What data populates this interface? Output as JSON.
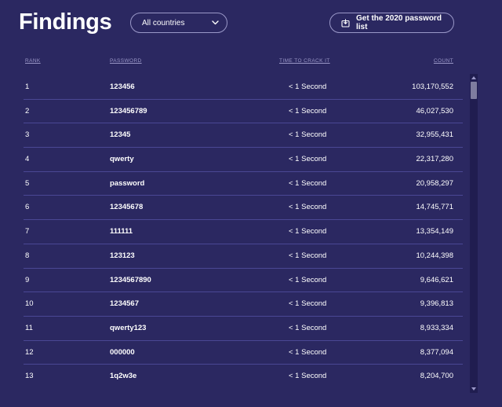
{
  "header": {
    "title": "Findings",
    "country_select": {
      "value": "All countries",
      "icon": "chevron-down-icon"
    },
    "download_button": {
      "label": "Get the 2020 password list",
      "icon": "download-icon"
    }
  },
  "table": {
    "columns": {
      "rank": "Rank",
      "password": "Password",
      "time": "Time to crack it",
      "count": "Count"
    },
    "rows": [
      {
        "rank": "1",
        "password": "123456",
        "time": "< 1 Second",
        "count": "103,170,552"
      },
      {
        "rank": "2",
        "password": "123456789",
        "time": "< 1 Second",
        "count": "46,027,530"
      },
      {
        "rank": "3",
        "password": "12345",
        "time": "< 1 Second",
        "count": "32,955,431"
      },
      {
        "rank": "4",
        "password": "qwerty",
        "time": "< 1 Second",
        "count": "22,317,280"
      },
      {
        "rank": "5",
        "password": "password",
        "time": "< 1 Second",
        "count": "20,958,297"
      },
      {
        "rank": "6",
        "password": "12345678",
        "time": "< 1 Second",
        "count": "14,745,771"
      },
      {
        "rank": "7",
        "password": "111111",
        "time": "< 1 Second",
        "count": "13,354,149"
      },
      {
        "rank": "8",
        "password": "123123",
        "time": "< 1 Second",
        "count": "10,244,398"
      },
      {
        "rank": "9",
        "password": "1234567890",
        "time": "< 1 Second",
        "count": "9,646,621"
      },
      {
        "rank": "10",
        "password": "1234567",
        "time": "< 1 Second",
        "count": "9,396,813"
      },
      {
        "rank": "11",
        "password": "qwerty123",
        "time": "< 1 Second",
        "count": "8,933,334"
      },
      {
        "rank": "12",
        "password": "000000",
        "time": "< 1 Second",
        "count": "8,377,094"
      },
      {
        "rank": "13",
        "password": "1q2w3e",
        "time": "< 1 Second",
        "count": "8,204,700"
      }
    ]
  },
  "colors": {
    "background": "#2b2861",
    "divider": "#4a4794",
    "header_text": "#9b98c8",
    "pill_border": "#9a98c8"
  }
}
